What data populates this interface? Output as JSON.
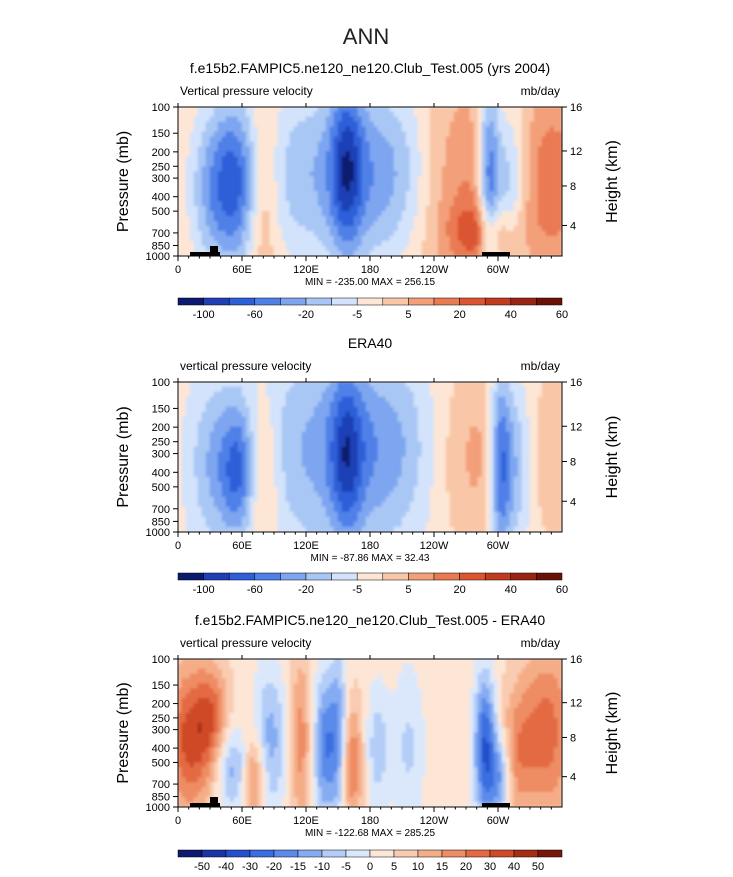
{
  "figure": {
    "title": "ANN"
  },
  "chart_data": [
    {
      "type": "heatmap",
      "title": "f.e15b2.FAMPIC5.ne120_ne120.Club_Test.005 (yrs 2004)",
      "left_label": "Vertical pressure velocity",
      "right_label": "mb/day",
      "ylabel": "Pressure (mb)",
      "ylabel_right": "Height (km)",
      "x_ticks": [
        "0",
        "60E",
        "120E",
        "180",
        "120W",
        "60W"
      ],
      "y_ticks": [
        "100",
        "150",
        "200",
        "250",
        "300",
        "400",
        "500",
        "700",
        "850",
        "1000"
      ],
      "y_ticks_right": [
        "16",
        "12",
        "8",
        "4"
      ],
      "stats": "MIN = -235.00   MAX = 256.15",
      "colorbar": {
        "labels": [
          "-100",
          "-60",
          "-20",
          "-5",
          "5",
          "20",
          "40",
          "60"
        ],
        "colors": [
          "#0b1a6e",
          "#1f3fb5",
          "#2d5fd8",
          "#4f80e8",
          "#7ea6f0",
          "#a9c7f5",
          "#d2e3fb",
          "#fde6d6",
          "#f9c7a8",
          "#f3a07a",
          "#ea7a52",
          "#dc5530",
          "#c23b1f",
          "#9a2412",
          "#6b1208"
        ]
      },
      "dataset": "model"
    },
    {
      "type": "heatmap",
      "title": "ERA40",
      "left_label": "vertical pressure velocity",
      "right_label": "mb/day",
      "ylabel": "Pressure (mb)",
      "ylabel_right": "Height (km)",
      "x_ticks": [
        "0",
        "60E",
        "120E",
        "180",
        "120W",
        "60W"
      ],
      "y_ticks": [
        "100",
        "150",
        "200",
        "250",
        "300",
        "400",
        "500",
        "700",
        "850",
        "1000"
      ],
      "y_ticks_right": [
        "16",
        "12",
        "8",
        "4"
      ],
      "stats": "MIN = -87.86   MAX = 32.43",
      "colorbar": {
        "labels": [
          "-100",
          "-60",
          "-20",
          "-5",
          "5",
          "20",
          "40",
          "60"
        ],
        "colors": [
          "#0b1a6e",
          "#1f3fb5",
          "#2d5fd8",
          "#4f80e8",
          "#7ea6f0",
          "#a9c7f5",
          "#d2e3fb",
          "#fde6d6",
          "#f9c7a8",
          "#f3a07a",
          "#ea7a52",
          "#dc5530",
          "#c23b1f",
          "#9a2412",
          "#6b1208"
        ]
      },
      "dataset": "obs"
    },
    {
      "type": "heatmap",
      "title": "f.e15b2.FAMPIC5.ne120_ne120.Club_Test.005 - ERA40",
      "left_label": "vertical pressure velocity",
      "right_label": "mb/day",
      "ylabel": "Pressure (mb)",
      "ylabel_right": "Height (km)",
      "x_ticks": [
        "0",
        "60E",
        "120E",
        "180",
        "120W",
        "60W"
      ],
      "y_ticks": [
        "100",
        "150",
        "200",
        "250",
        "300",
        "400",
        "500",
        "700",
        "850",
        "1000"
      ],
      "y_ticks_right": [
        "16",
        "12",
        "8",
        "4"
      ],
      "stats": "MIN = -122.68   MAX = 285.25",
      "colorbar": {
        "labels": [
          "-50",
          "-40",
          "-30",
          "-20",
          "-15",
          "-10",
          "-5",
          "0",
          "5",
          "10",
          "15",
          "20",
          "30",
          "40",
          "50"
        ],
        "colors": [
          "#0b1a6e",
          "#1a35a8",
          "#2450cc",
          "#3a6ee0",
          "#5a8aea",
          "#85abf2",
          "#b3cdf8",
          "#dbe8fc",
          "#fde6d6",
          "#f9cbb0",
          "#f5ad88",
          "#ee8c63",
          "#e36a42",
          "#cf4a28",
          "#a82d15",
          "#7a170a"
        ]
      },
      "dataset": "diff"
    }
  ]
}
